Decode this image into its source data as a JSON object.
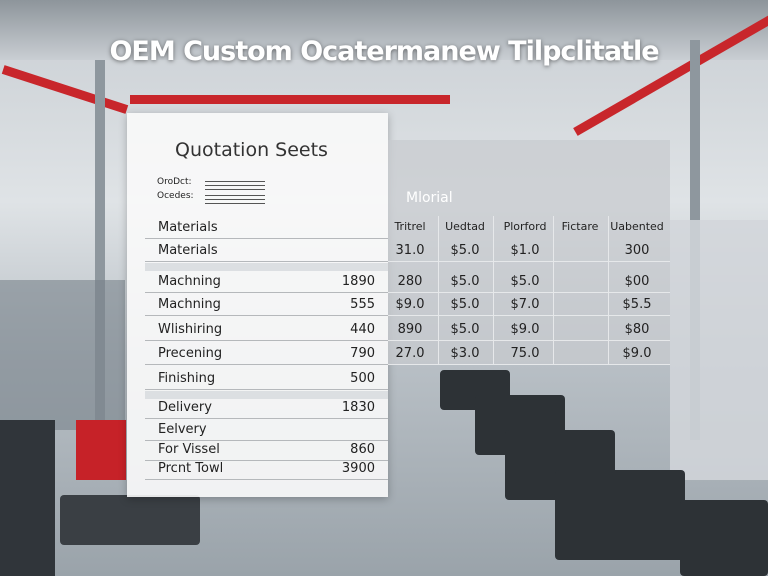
{
  "header": {
    "title": "OEM Custom Ocatermanew Tilpclitatle"
  },
  "sheet": {
    "title": "Quotation Seets",
    "fields": [
      "OroDct:",
      "Ocedes:"
    ],
    "rows": [
      {
        "label": "Materials",
        "value": null
      },
      {
        "label": "Materials",
        "value": null
      },
      {
        "label": "Machning",
        "value": "1890"
      },
      {
        "label": "Machning",
        "value": "555"
      },
      {
        "label": "Wlishiring",
        "value": "440"
      },
      {
        "label": "Precening",
        "value": "790"
      },
      {
        "label": "Finishing",
        "value": "500"
      },
      {
        "label": "Delivery",
        "value": "1830"
      },
      {
        "label": "Eelvery",
        "value": null
      },
      {
        "label": "For Vissel",
        "value": "860"
      },
      {
        "label": "Prcnt Towl",
        "value": "3900"
      }
    ]
  },
  "grid": {
    "header": "Mlorial",
    "columns": [
      "Tritrel",
      "Uedtad",
      "Plorford",
      "Fictare",
      "Uabented"
    ],
    "rows": [
      [
        "31.0",
        "$5.0",
        "$1.0",
        null,
        "300"
      ],
      [
        "280",
        "$5.0",
        "$5.0",
        null,
        "$00"
      ],
      [
        "$9.0",
        "$5.0",
        "$7.0",
        null,
        "$5.5"
      ],
      [
        "890",
        "$5.0",
        "$9.0",
        null,
        "$80"
      ],
      [
        "27.0",
        "$3.0",
        "75.0",
        null,
        "$9.0"
      ]
    ]
  }
}
